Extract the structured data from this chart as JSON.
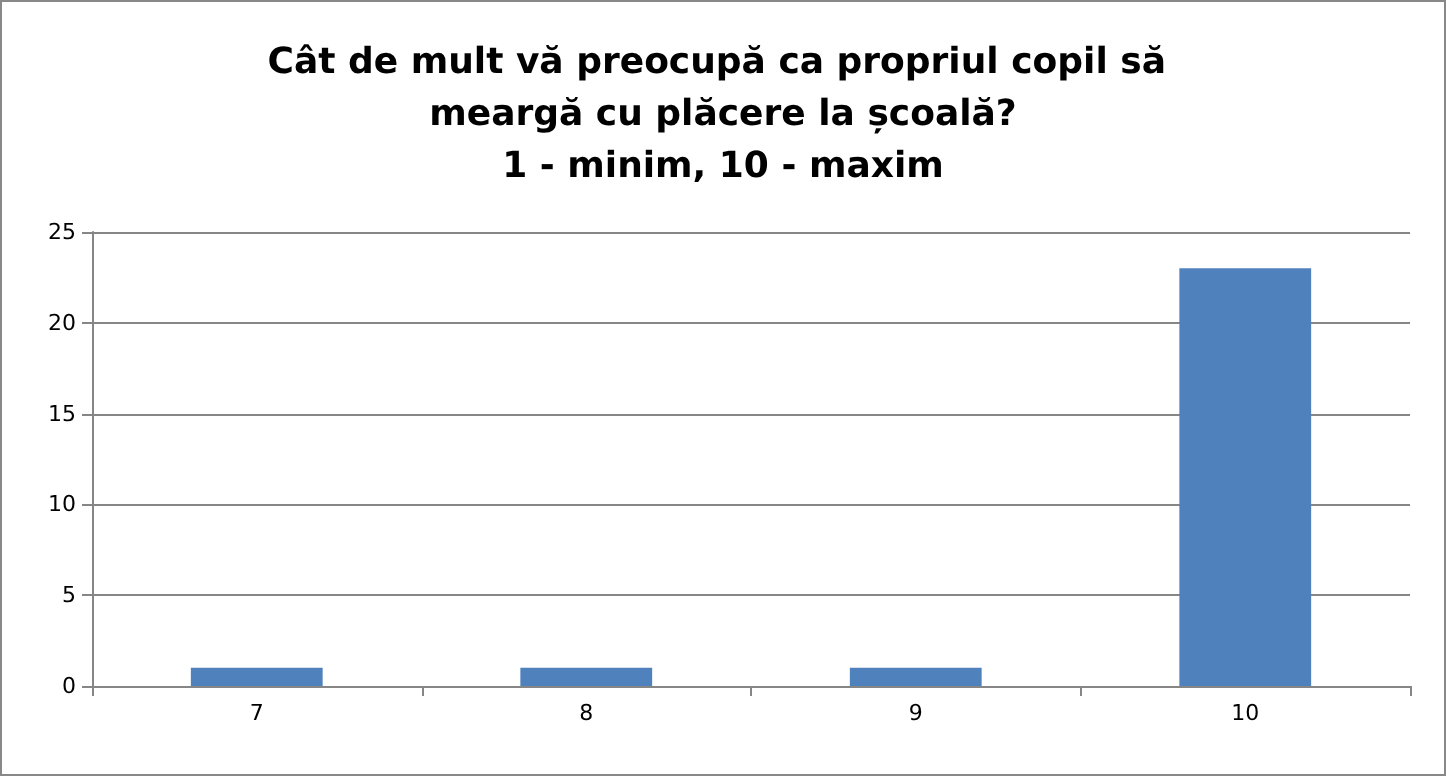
{
  "chart_data": {
    "type": "bar",
    "title": "Cât de mult vă preocupă ca propriul copil să meargă cu plăcere la școală?\n1 - minim, 10 - maxim",
    "categories": [
      "7",
      "8",
      "9",
      "10"
    ],
    "values": [
      1,
      1,
      1,
      23
    ],
    "color": "#4f81bd",
    "ylim": [
      0,
      25
    ],
    "yticks": [
      0,
      5,
      10,
      15,
      20,
      25
    ],
    "grid": "y"
  }
}
